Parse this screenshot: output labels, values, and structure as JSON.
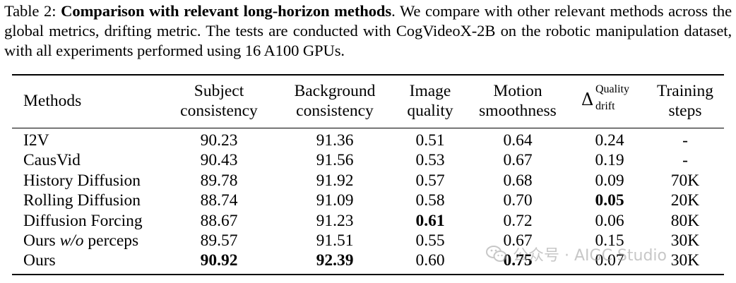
{
  "caption": {
    "label": "Table 2:",
    "bold_title": "Comparison with relevant long-horizon methods",
    "text": ". We compare with other relevant methods across the global metrics, drifting metric. The tests are conducted with CogVideoX-2B on the robotic manipulation dataset, with all experiments performed using 16 A100 GPUs."
  },
  "table": {
    "headers": {
      "methods": "Methods",
      "subject": [
        "Subject",
        "consistency"
      ],
      "background": [
        "Background",
        "consistency"
      ],
      "image": [
        "Image",
        "quality"
      ],
      "motion": [
        "Motion",
        "smoothness"
      ],
      "drift": {
        "symbol": "Δ",
        "sup": "Quality",
        "sub": "drift"
      },
      "steps": [
        "Training",
        "steps"
      ]
    },
    "rows": [
      {
        "method": "I2V",
        "subject": "90.23",
        "background": "91.36",
        "image": "0.51",
        "motion": "0.64",
        "drift": "0.24",
        "steps": "-"
      },
      {
        "method": "CausVid",
        "subject": "90.43",
        "background": "91.56",
        "image": "0.53",
        "motion": "0.67",
        "drift": "0.19",
        "steps": "-"
      },
      {
        "method": "History Diffusion",
        "subject": "89.78",
        "background": "91.92",
        "image": "0.57",
        "motion": "0.68",
        "drift": "0.09",
        "steps": "70K"
      },
      {
        "method": "Rolling Diffusion",
        "subject": "88.74",
        "background": "91.09",
        "image": "0.58",
        "motion": "0.70",
        "drift": "0.05",
        "steps": "20K"
      },
      {
        "method": "Diffusion Forcing",
        "subject": "88.67",
        "background": "91.23",
        "image": "0.61",
        "motion": "0.72",
        "drift": "0.06",
        "steps": "80K"
      },
      {
        "method_prefix": "Ours ",
        "method_italic": "w/o",
        "method_suffix": " perceps",
        "subject": "89.57",
        "background": "91.51",
        "image": "0.55",
        "motion": "0.67",
        "drift": "0.15",
        "steps": "30K"
      },
      {
        "method": "Ours",
        "subject": "90.92",
        "background": "92.39",
        "image": "0.60",
        "motion": "0.75",
        "drift": "0.07",
        "steps": "30K"
      }
    ]
  },
  "watermark": {
    "text": "公众号 · AIGC Studio",
    "icon": "wechat-icon"
  }
}
